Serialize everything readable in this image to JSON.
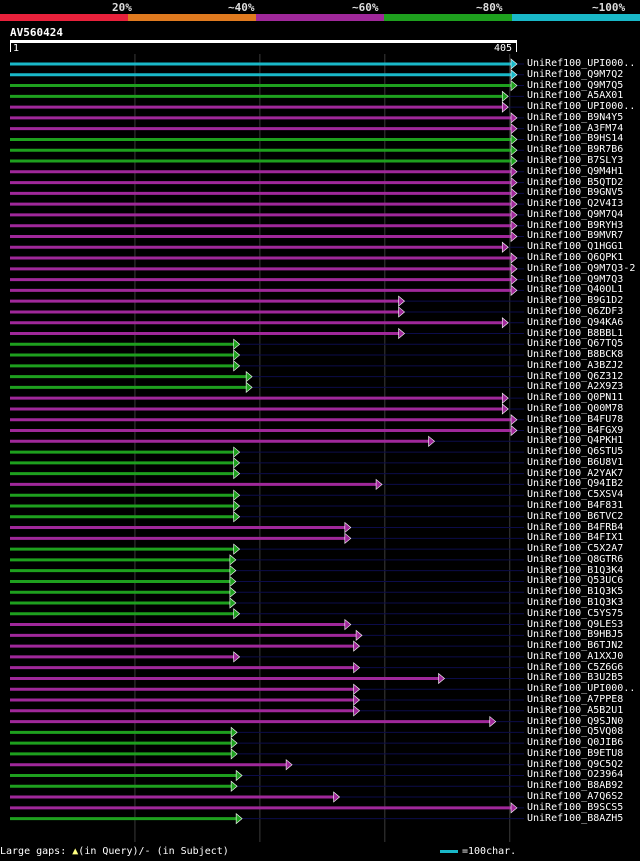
{
  "legend": {
    "items": [
      {
        "label": "20%",
        "color": "#e8213b"
      },
      {
        "label": "~40%",
        "color": "#e07a1f"
      },
      {
        "label": "~60%",
        "color": "#a0289a"
      },
      {
        "label": "~80%",
        "color": "#1ea01e"
      },
      {
        "label": "~100%",
        "color": "#19b8c8"
      }
    ]
  },
  "query": {
    "name": "AV560424",
    "start_label": "1",
    "end_label": "405",
    "length": 405
  },
  "hits": [
    {
      "label": "UniRef100_UPI000..",
      "end": 405,
      "color": "cyan"
    },
    {
      "label": "UniRef100_Q9M7Q2",
      "end": 405,
      "color": "cyan"
    },
    {
      "label": "UniRef100_Q9M7Q5",
      "end": 405,
      "color": "green"
    },
    {
      "label": "UniRef100_A5AX01",
      "end": 398,
      "color": "green"
    },
    {
      "label": "UniRef100_UPI000..",
      "end": 398,
      "color": "magenta"
    },
    {
      "label": "UniRef100_B9N4Y5",
      "end": 405,
      "color": "magenta"
    },
    {
      "label": "UniRef100_A3FM74",
      "end": 405,
      "color": "magenta"
    },
    {
      "label": "UniRef100_B9HS14",
      "end": 405,
      "color": "green"
    },
    {
      "label": "UniRef100_B9R7B6",
      "end": 405,
      "color": "green"
    },
    {
      "label": "UniRef100_B7SLY3",
      "end": 405,
      "color": "green"
    },
    {
      "label": "UniRef100_Q9M4H1",
      "end": 405,
      "color": "magenta"
    },
    {
      "label": "UniRef100_B5QTD2",
      "end": 405,
      "color": "magenta"
    },
    {
      "label": "UniRef100_B9GNV5",
      "end": 405,
      "color": "magenta"
    },
    {
      "label": "UniRef100_Q2V4I3",
      "end": 405,
      "color": "magenta"
    },
    {
      "label": "UniRef100_Q9M7Q4",
      "end": 405,
      "color": "magenta"
    },
    {
      "label": "UniRef100_B9RYH3",
      "end": 405,
      "color": "magenta"
    },
    {
      "label": "UniRef100_B9MVR7",
      "end": 405,
      "color": "magenta"
    },
    {
      "label": "UniRef100_Q1HGG1",
      "end": 398,
      "color": "magenta"
    },
    {
      "label": "UniRef100_Q6QPK1",
      "end": 405,
      "color": "magenta"
    },
    {
      "label": "UniRef100_Q9M7Q3-2",
      "end": 405,
      "color": "magenta"
    },
    {
      "label": "UniRef100_Q9M7Q3",
      "end": 405,
      "color": "magenta"
    },
    {
      "label": "UniRef100_Q40OL1",
      "end": 405,
      "color": "magenta"
    },
    {
      "label": "UniRef100_B9G1D2",
      "end": 315,
      "color": "magenta"
    },
    {
      "label": "UniRef100_Q6ZDF3",
      "end": 315,
      "color": "magenta"
    },
    {
      "label": "UniRef100_Q94KA6",
      "end": 398,
      "color": "magenta"
    },
    {
      "label": "UniRef100_B8BBL1",
      "end": 315,
      "color": "magenta"
    },
    {
      "label": "UniRef100_Q67TQ5",
      "end": 183,
      "color": "green"
    },
    {
      "label": "UniRef100_B8BCK8",
      "end": 183,
      "color": "green"
    },
    {
      "label": "UniRef100_A3BZJ2",
      "end": 183,
      "color": "green"
    },
    {
      "label": "UniRef100_Q6Z312",
      "end": 193,
      "color": "green"
    },
    {
      "label": "UniRef100_A2X9Z3",
      "end": 193,
      "color": "green"
    },
    {
      "label": "UniRef100_Q0PN11",
      "end": 398,
      "color": "magenta"
    },
    {
      "label": "UniRef100_Q00M78",
      "end": 398,
      "color": "magenta"
    },
    {
      "label": "UniRef100_B4FU78",
      "end": 405,
      "color": "magenta"
    },
    {
      "label": "UniRef100_B4FGX9",
      "end": 405,
      "color": "magenta"
    },
    {
      "label": "UniRef100_Q4PKH1",
      "end": 339,
      "color": "magenta"
    },
    {
      "label": "UniRef100_Q6STU5",
      "end": 183,
      "color": "green"
    },
    {
      "label": "UniRef100_B6U8V1",
      "end": 183,
      "color": "green"
    },
    {
      "label": "UniRef100_A2YAK7",
      "end": 183,
      "color": "green"
    },
    {
      "label": "UniRef100_Q94IB2",
      "end": 297,
      "color": "magenta"
    },
    {
      "label": "UniRef100_C5XSV4",
      "end": 183,
      "color": "green"
    },
    {
      "label": "UniRef100_B4F831",
      "end": 183,
      "color": "green"
    },
    {
      "label": "UniRef100_B6TVC2",
      "end": 183,
      "color": "green"
    },
    {
      "label": "UniRef100_B4FRB4",
      "end": 272,
      "color": "magenta"
    },
    {
      "label": "UniRef100_B4FIX1",
      "end": 272,
      "color": "magenta"
    },
    {
      "label": "UniRef100_C5X2A7",
      "end": 183,
      "color": "green"
    },
    {
      "label": "UniRef100_Q8GTR6",
      "end": 180,
      "color": "green"
    },
    {
      "label": "UniRef100_B1Q3K4",
      "end": 180,
      "color": "green"
    },
    {
      "label": "UniRef100_Q53UC6",
      "end": 180,
      "color": "green"
    },
    {
      "label": "UniRef100_B1Q3K5",
      "end": 180,
      "color": "green"
    },
    {
      "label": "UniRef100_B1Q3K3",
      "end": 180,
      "color": "green"
    },
    {
      "label": "UniRef100_C5YS75",
      "end": 183,
      "color": "green"
    },
    {
      "label": "UniRef100_Q9LES3",
      "end": 272,
      "color": "magenta"
    },
    {
      "label": "UniRef100_B9HBJ5",
      "end": 281,
      "color": "magenta"
    },
    {
      "label": "UniRef100_B6TJN2",
      "end": 279,
      "color": "magenta"
    },
    {
      "label": "UniRef100_A1XXJ0",
      "end": 183,
      "color": "magenta"
    },
    {
      "label": "UniRef100_C5Z6G6",
      "end": 279,
      "color": "magenta"
    },
    {
      "label": "UniRef100_B3U2B5",
      "end": 347,
      "color": "magenta"
    },
    {
      "label": "UniRef100_UPI000..",
      "end": 279,
      "color": "magenta"
    },
    {
      "label": "UniRef100_A7PPE8",
      "end": 279,
      "color": "magenta"
    },
    {
      "label": "UniRef100_A5B2U1",
      "end": 279,
      "color": "magenta"
    },
    {
      "label": "UniRef100_Q9SJN0",
      "end": 388,
      "color": "magenta"
    },
    {
      "label": "UniRef100_Q5VQ08",
      "end": 181,
      "color": "green"
    },
    {
      "label": "UniRef100_Q0JIB6",
      "end": 181,
      "color": "green"
    },
    {
      "label": "UniRef100_B9ETU8",
      "end": 181,
      "color": "green"
    },
    {
      "label": "UniRef100_Q9C5Q2",
      "end": 225,
      "color": "magenta"
    },
    {
      "label": "UniRef100_O23964",
      "end": 185,
      "color": "green"
    },
    {
      "label": "UniRef100_B8AB92",
      "end": 181,
      "color": "green"
    },
    {
      "label": "UniRef100_A7Q6S2",
      "end": 263,
      "color": "magenta"
    },
    {
      "label": "UniRef100_B9SCS5",
      "end": 405,
      "color": "magenta"
    },
    {
      "label": "UniRef100_B8AZH5",
      "end": 185,
      "color": "green"
    }
  ],
  "colors": {
    "cyan": "#19b8c8",
    "green": "#1ea01e",
    "magenta": "#a0289a",
    "track": "#0c0c4a",
    "gridline": "#3a3a3a",
    "gap_marker": "#ffff80"
  },
  "footer": {
    "gaps_prefix": "Large gaps:",
    "gaps_query": "(in Query)/- (in Subject)",
    "scale_text": "=100char."
  }
}
